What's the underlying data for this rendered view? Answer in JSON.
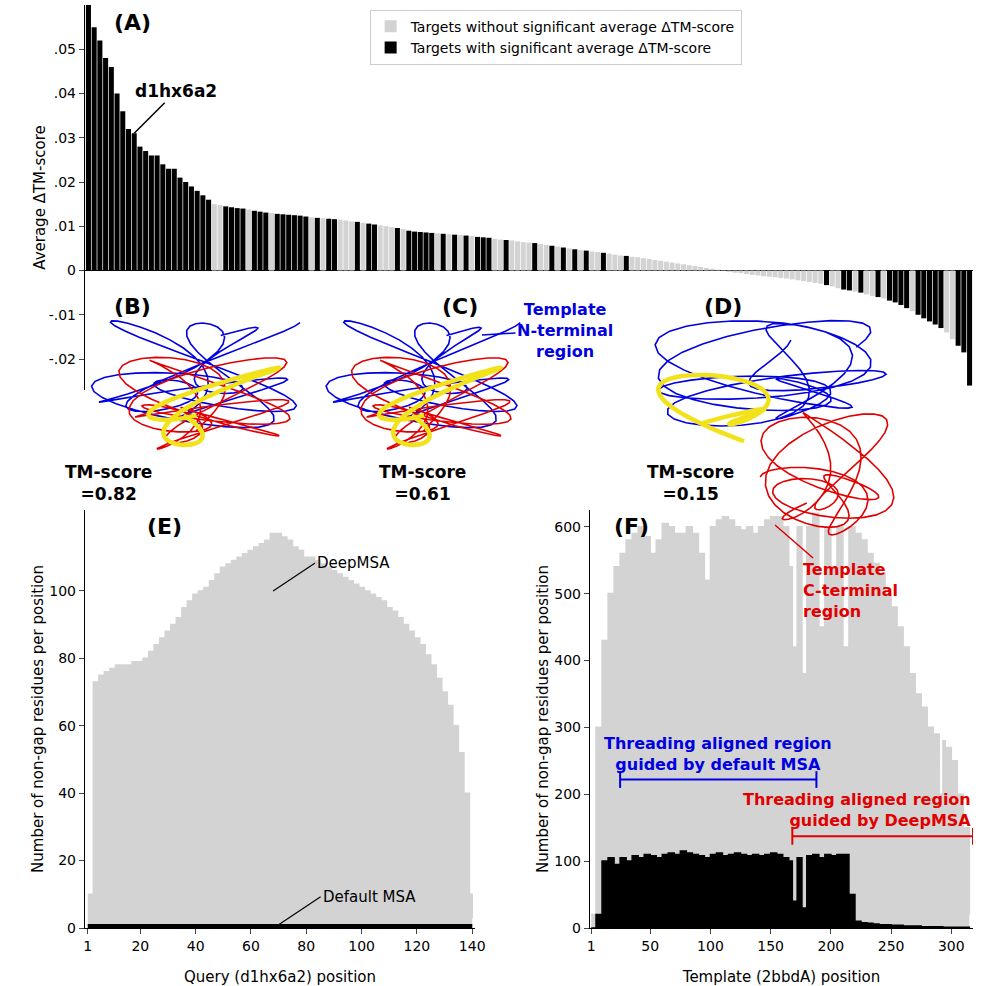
{
  "chart_data": [
    {
      "panel": "(A)",
      "type": "bar",
      "y_label": "Average ΔTM-score",
      "categories": [
        null,
        null,
        null,
        null,
        null,
        null,
        null,
        null,
        null,
        null,
        null,
        null,
        null,
        null,
        null,
        null,
        null,
        null,
        null,
        null,
        null,
        null,
        null,
        null,
        null,
        null,
        null,
        null,
        null,
        null,
        null,
        null,
        null,
        null,
        null,
        null,
        null,
        null,
        null,
        null,
        null,
        null,
        null,
        null,
        null,
        null,
        null,
        null,
        null,
        null,
        null,
        null,
        null,
        null,
        null,
        null,
        null,
        null,
        null,
        null,
        null,
        null,
        null,
        null,
        null,
        null,
        null,
        null,
        null,
        null,
        null,
        null,
        null,
        null,
        null,
        null,
        null,
        null,
        null,
        null,
        null,
        null,
        null,
        null,
        null,
        null,
        null,
        null,
        null,
        null,
        null,
        null,
        null,
        null,
        null,
        null,
        null,
        null,
        null,
        null,
        null,
        null,
        null,
        null,
        null,
        null,
        null,
        null,
        null,
        null,
        null,
        null,
        null,
        null,
        null,
        null,
        null,
        null,
        null,
        null,
        null,
        null,
        null,
        null,
        null,
        null,
        null,
        null,
        null,
        null,
        null,
        null,
        null,
        null,
        null,
        null,
        null,
        null,
        null,
        null,
        null,
        null,
        null,
        null,
        null,
        null,
        null,
        null,
        null,
        null,
        null,
        null,
        null,
        null,
        null
      ],
      "series": [
        {
          "name": "Targets without significant average ΔTM-score",
          "color": "#d3d3d3",
          "values": [
            null,
            null,
            null,
            null,
            null,
            null,
            null,
            null,
            null,
            null,
            null,
            null,
            null,
            null,
            null,
            null,
            null,
            null,
            null,
            null,
            null,
            null,
            0.015,
            0.0148,
            null,
            null,
            null,
            null,
            0.0138,
            null,
            null,
            null,
            0.013,
            null,
            null,
            null,
            null,
            null,
            null,
            0.012,
            null,
            0.0118,
            null,
            null,
            0.0115,
            0.0113,
            0.0111,
            null,
            0.0108,
            null,
            null,
            0.0102,
            0.01,
            0.0098,
            null,
            0.0094,
            null,
            null,
            null,
            null,
            null,
            0.0084,
            null,
            0.0082,
            null,
            0.008,
            null,
            0.0078,
            null,
            null,
            null,
            0.0072,
            0.007,
            null,
            0.0068,
            0.0066,
            0.0064,
            0.0063,
            null,
            0.006,
            0.0058,
            null,
            0.0054,
            null,
            0.005,
            null,
            0.0046,
            null,
            0.0043,
            0.0042,
            null,
            0.0038,
            0.0036,
            0.0034,
            null,
            0.0031,
            0.003,
            0.0028,
            0.0026,
            0.0024,
            0.0022,
            0.002,
            0.0018,
            0.0016,
            0.0014,
            0.0012,
            0.001,
            0.0008,
            0.0006,
            0.0004,
            0.0002,
            0.0001,
            -0.0003,
            -0.0005,
            -0.0006,
            -0.0008,
            -0.001,
            -0.0011,
            -0.0013,
            -0.0014,
            -0.0015,
            -0.0017,
            -0.0018,
            -0.002,
            -0.0022,
            -0.0024,
            -0.0026,
            -0.0028,
            -0.003,
            null,
            -0.0036,
            -0.004,
            null,
            null,
            -0.0048,
            null,
            -0.0054,
            -0.0058,
            null,
            -0.0063,
            null,
            null,
            null,
            null,
            -0.0092,
            null,
            null,
            null,
            null,
            null,
            -0.014,
            -0.0155,
            null,
            null,
            null
          ]
        },
        {
          "name": "Targets with significant average ΔTM-score",
          "color": "#000000",
          "values": [
            0.06,
            0.055,
            0.052,
            0.048,
            0.046,
            0.04,
            0.036,
            0.032,
            0.031,
            0.028,
            0.027,
            0.026,
            0.026,
            0.024,
            0.023,
            0.023,
            0.021,
            0.02,
            0.019,
            0.018,
            0.017,
            0.016,
            null,
            null,
            0.0145,
            0.0143,
            0.0141,
            0.014,
            null,
            0.0135,
            0.0133,
            0.0131,
            null,
            0.0128,
            0.0127,
            0.0126,
            0.0125,
            0.0124,
            0.0122,
            null,
            0.0119,
            null,
            0.0117,
            0.0116,
            null,
            null,
            null,
            0.011,
            null,
            0.0106,
            0.0104,
            null,
            null,
            null,
            0.0096,
            null,
            0.009,
            0.0088,
            0.0087,
            0.0086,
            0.0085,
            null,
            0.0083,
            null,
            0.0081,
            null,
            0.0079,
            null,
            0.0076,
            0.0075,
            0.0074,
            null,
            null,
            0.0069,
            null,
            null,
            null,
            null,
            0.0062,
            null,
            null,
            0.0056,
            null,
            0.0052,
            null,
            0.0048,
            null,
            0.0045,
            null,
            null,
            0.004,
            null,
            null,
            null,
            0.0033,
            null,
            null,
            null,
            null,
            null,
            null,
            null,
            null,
            null,
            null,
            null,
            null,
            null,
            null,
            null,
            null,
            null,
            null,
            null,
            null,
            null,
            null,
            null,
            null,
            null,
            null,
            null,
            null,
            null,
            null,
            null,
            null,
            null,
            null,
            -0.0033,
            null,
            null,
            -0.0043,
            -0.0045,
            null,
            -0.005,
            null,
            null,
            -0.006,
            null,
            -0.0068,
            -0.0072,
            -0.0078,
            -0.0085,
            null,
            -0.01,
            -0.0108,
            -0.0115,
            -0.0122,
            -0.013,
            null,
            null,
            -0.017,
            -0.0185,
            -0.026
          ]
        }
      ],
      "ylim": [
        -0.027,
        0.06
      ],
      "yticks": [
        {
          "value": -0.02,
          "label": "-.02"
        },
        {
          "value": -0.01,
          "label": "-.01"
        },
        0,
        {
          "value": 0.01,
          "label": ".01"
        },
        {
          "value": 0.02,
          "label": ".02"
        },
        {
          "value": 0.03,
          "label": ".03"
        },
        {
          "value": 0.04,
          "label": ".04"
        },
        {
          "value": 0.05,
          "label": ".05"
        }
      ],
      "tick_labels": "y",
      "legend": "top",
      "annotations": [
        {
          "text": "d1hx6a2",
          "x": 8
        }
      ]
    },
    {
      "panel": "(E)",
      "type": "area",
      "line_style": "step",
      "x_label": "Query (d1hx6a2) position",
      "y_label": "Number of non-gap residues per position",
      "x": [
        1,
        3,
        5,
        7,
        9,
        11,
        13,
        15,
        17,
        19,
        21,
        23,
        25,
        27,
        29,
        31,
        33,
        35,
        37,
        39,
        41,
        43,
        45,
        47,
        49,
        51,
        53,
        55,
        57,
        59,
        61,
        63,
        65,
        67,
        69,
        71,
        73,
        75,
        77,
        79,
        81,
        83,
        85,
        87,
        89,
        91,
        93,
        95,
        97,
        99,
        101,
        103,
        105,
        107,
        109,
        111,
        113,
        115,
        117,
        119,
        121,
        123,
        125,
        127,
        129,
        131,
        133,
        135,
        137,
        139,
        140
      ],
      "series": [
        {
          "name": "DeepMSA",
          "color": "#d3d3d3",
          "label_at": [
            68,
            100
          ],
          "values": [
            10,
            73,
            75,
            76,
            77,
            78,
            78,
            78,
            79,
            79,
            80,
            82,
            84,
            86,
            88,
            90,
            92,
            95,
            97,
            99,
            100,
            101,
            103,
            105,
            107,
            108,
            109,
            110,
            111,
            112,
            113,
            114,
            115,
            117,
            117,
            116,
            115,
            113,
            112,
            110,
            110,
            109,
            108,
            107,
            106,
            105,
            104,
            103,
            102,
            101,
            100,
            99,
            98,
            97,
            95,
            94,
            92,
            90,
            88,
            86,
            84,
            81,
            78,
            74,
            70,
            66,
            60,
            52,
            40,
            10,
            3
          ]
        },
        {
          "name": "Default MSA",
          "color": "#000000",
          "label_at": [
            70,
            1
          ],
          "values": [
            1,
            1,
            1,
            1,
            1,
            1,
            1,
            1,
            1,
            1,
            1,
            1,
            1,
            1,
            1,
            1,
            1,
            1,
            1,
            1,
            1,
            1,
            1,
            1,
            1,
            1,
            1,
            1,
            1,
            1,
            1,
            1,
            1,
            1,
            1,
            1,
            1,
            1,
            1,
            1,
            1,
            1,
            1,
            1,
            1,
            1,
            1,
            1,
            1,
            1,
            1,
            1,
            1,
            1,
            1,
            1,
            1,
            1,
            1,
            1,
            1,
            1,
            1,
            1,
            1,
            1,
            1,
            1,
            1,
            1,
            1
          ]
        }
      ],
      "xlim": [
        0,
        141
      ],
      "xticks": [
        1,
        20,
        40,
        60,
        80,
        100,
        120,
        140
      ],
      "ylim": [
        0,
        124
      ],
      "yticks": [
        0,
        20,
        40,
        60,
        80,
        100
      ]
    },
    {
      "panel": "(F)",
      "type": "area",
      "line_style": "step",
      "x_label": "Template (2bbdA) position",
      "y_label": "Number of non-gap residues per position",
      "x": [
        1,
        5,
        10,
        15,
        20,
        25,
        30,
        35,
        40,
        45,
        50,
        55,
        60,
        65,
        70,
        75,
        80,
        85,
        90,
        95,
        100,
        105,
        110,
        115,
        120,
        125,
        130,
        135,
        140,
        145,
        150,
        155,
        160,
        165,
        168,
        172,
        176,
        180,
        185,
        190,
        195,
        200,
        205,
        210,
        215,
        220,
        225,
        230,
        235,
        240,
        245,
        250,
        255,
        260,
        265,
        270,
        275,
        280,
        285,
        290,
        293,
        295,
        300,
        305,
        310,
        315
      ],
      "series": [
        {
          "name": "DeepMSA",
          "color": "#d3d3d3",
          "values": [
            20,
            300,
            430,
            500,
            540,
            560,
            580,
            590,
            600,
            585,
            560,
            580,
            605,
            600,
            590,
            590,
            600,
            590,
            560,
            520,
            600,
            610,
            615,
            610,
            600,
            595,
            600,
            590,
            600,
            610,
            615,
            615,
            600,
            540,
            420,
            600,
            380,
            600,
            620,
            450,
            600,
            540,
            600,
            420,
            600,
            590,
            580,
            560,
            545,
            530,
            500,
            480,
            450,
            420,
            380,
            350,
            330,
            300,
            290,
            200,
            280,
            270,
            250,
            200,
            150,
            20
          ]
        },
        {
          "name": "Default MSA",
          "color": "#000000",
          "values": [
            0,
            20,
            100,
            105,
            95,
            105,
            100,
            108,
            105,
            110,
            108,
            105,
            110,
            112,
            110,
            115,
            112,
            110,
            108,
            105,
            110,
            112,
            108,
            110,
            112,
            110,
            108,
            110,
            108,
            110,
            112,
            110,
            105,
            100,
            40,
            105,
            30,
            108,
            110,
            105,
            110,
            108,
            110,
            110,
            50,
            10,
            8,
            7,
            6,
            5,
            5,
            4,
            4,
            3,
            3,
            3,
            2,
            2,
            2,
            2,
            1,
            1,
            1,
            1,
            1,
            0
          ]
        }
      ],
      "xlim": [
        0,
        318
      ],
      "xticks": [
        1,
        50,
        100,
        150,
        200,
        250,
        300
      ],
      "ylim": [
        0,
        625
      ],
      "yticks": [
        0,
        100,
        200,
        300,
        400,
        500,
        600
      ],
      "ranges": [
        {
          "lines": [
            "Threading aligned region",
            "guided by default MSA"
          ],
          "start": 25,
          "end": 188,
          "y": 222,
          "color": "#0000e0"
        },
        {
          "lines": [
            "Threading aligned region",
            "guided by DeepMSA"
          ],
          "start": 168,
          "end": 318,
          "y": 137,
          "color": "#e00000"
        }
      ]
    }
  ],
  "structures": {
    "panels": [
      {
        "panel": "(B)",
        "tm_label": [
          "TM-score",
          "=0.82"
        ]
      },
      {
        "panel": "(C)",
        "tm_label": [
          "TM-score",
          "=0.61"
        ]
      },
      {
        "panel": "(D)",
        "tm_label": [
          "TM-score",
          "=0.15"
        ]
      }
    ],
    "labels": [
      {
        "lines": [
          "Template",
          "N-terminal",
          "region"
        ],
        "color": "#0000e0"
      },
      {
        "lines": [
          "Template",
          "C-terminal",
          "region"
        ],
        "color": "#e00000"
      }
    ]
  }
}
